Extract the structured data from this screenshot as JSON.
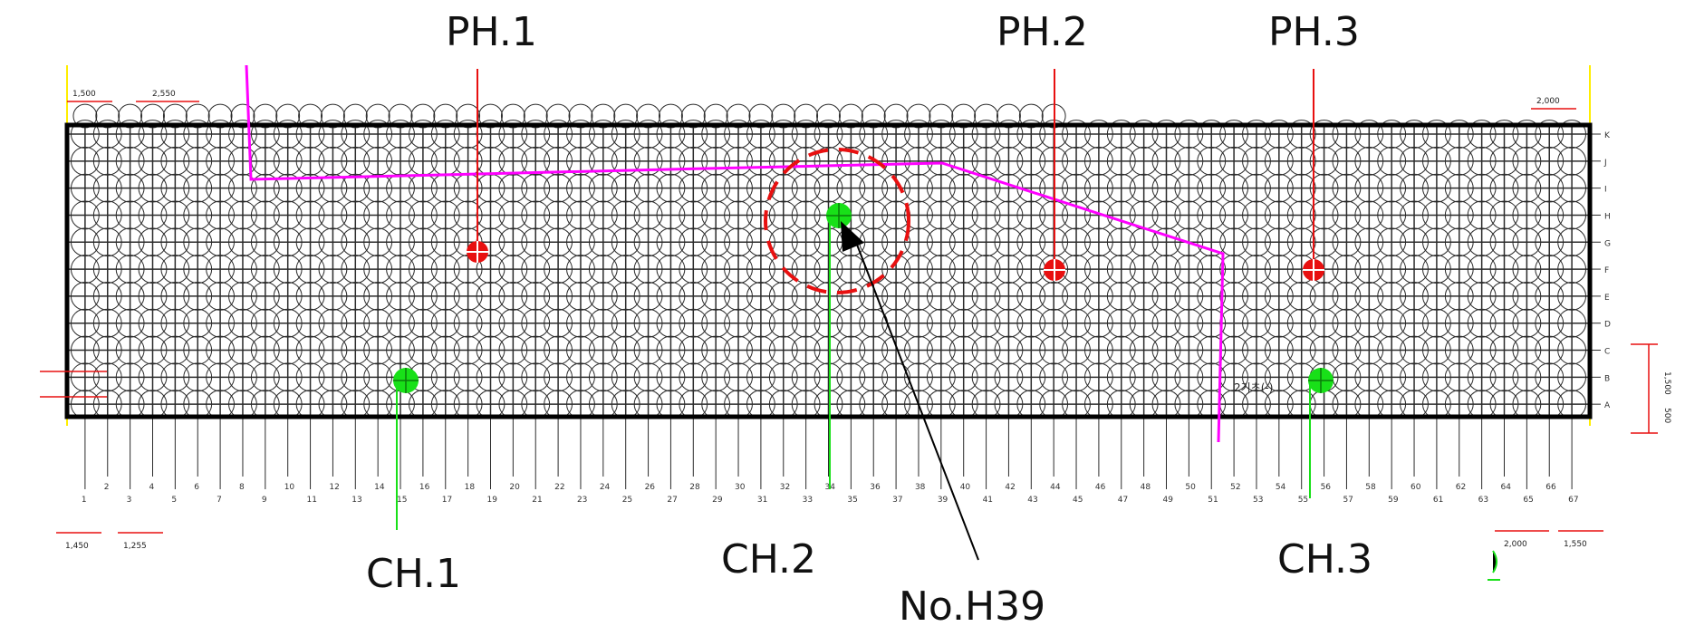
{
  "colors": {
    "grid": "#2b2b2b",
    "outline": "#000000",
    "pile": "#2b2b2b",
    "boundary": "#ff00ff",
    "photo_marker": "#e81010",
    "core_marker": "#18e018",
    "guide": "#ffee00",
    "highlight_ring": "#e81010"
  },
  "callouts": {
    "ph1": "PH.1",
    "ph2": "PH.2",
    "ph3": "PH.3",
    "ch1": "CH.1",
    "ch2": "CH.2",
    "ch3": "CH.3",
    "target": "No.H39"
  },
  "dimensions": {
    "top_left_a": "1,500",
    "top_left_b": "2,550",
    "top_right": "2,000",
    "bottom_left_a": "1,450",
    "bottom_left_b": "1,255",
    "bottom_right_a": "2,000",
    "bottom_right_b": "1,550",
    "right_side": "1,500",
    "right_side_b": "500",
    "annotation": "2기초(-)"
  },
  "row_labels": [
    "K",
    "J",
    "I",
    "H",
    "G",
    "F",
    "E",
    "D",
    "C",
    "B",
    "A"
  ],
  "column_labels": [
    "1",
    "2",
    "3",
    "4",
    "5",
    "6",
    "7",
    "8",
    "9",
    "10",
    "11",
    "12",
    "13",
    "14",
    "15",
    "16",
    "17",
    "18",
    "19",
    "20",
    "21",
    "22",
    "23",
    "24",
    "25",
    "26",
    "27",
    "28",
    "29",
    "30",
    "31",
    "32",
    "33",
    "34",
    "35",
    "36",
    "37",
    "38",
    "39",
    "40",
    "41",
    "42",
    "43",
    "44",
    "45",
    "46",
    "47",
    "48",
    "49",
    "50",
    "51",
    "52",
    "53",
    "54",
    "55",
    "56",
    "57",
    "58",
    "59",
    "60",
    "61",
    "62",
    "63",
    "64",
    "65",
    "66",
    "67"
  ],
  "markers": {
    "photo": [
      {
        "name": "PH.1",
        "column": 21,
        "row": "G"
      },
      {
        "name": "PH.2",
        "column": 50,
        "row": "F"
      },
      {
        "name": "PH.3",
        "column": 59,
        "row": "F"
      }
    ],
    "core": [
      {
        "name": "CH.1",
        "column": 17,
        "row": "B"
      },
      {
        "name": "CH.2",
        "column": 39,
        "row": "H"
      },
      {
        "name": "CH.3",
        "column": 59,
        "row": "B"
      }
    ],
    "target": {
      "name": "No.H39",
      "column": 39,
      "row": "H"
    }
  }
}
